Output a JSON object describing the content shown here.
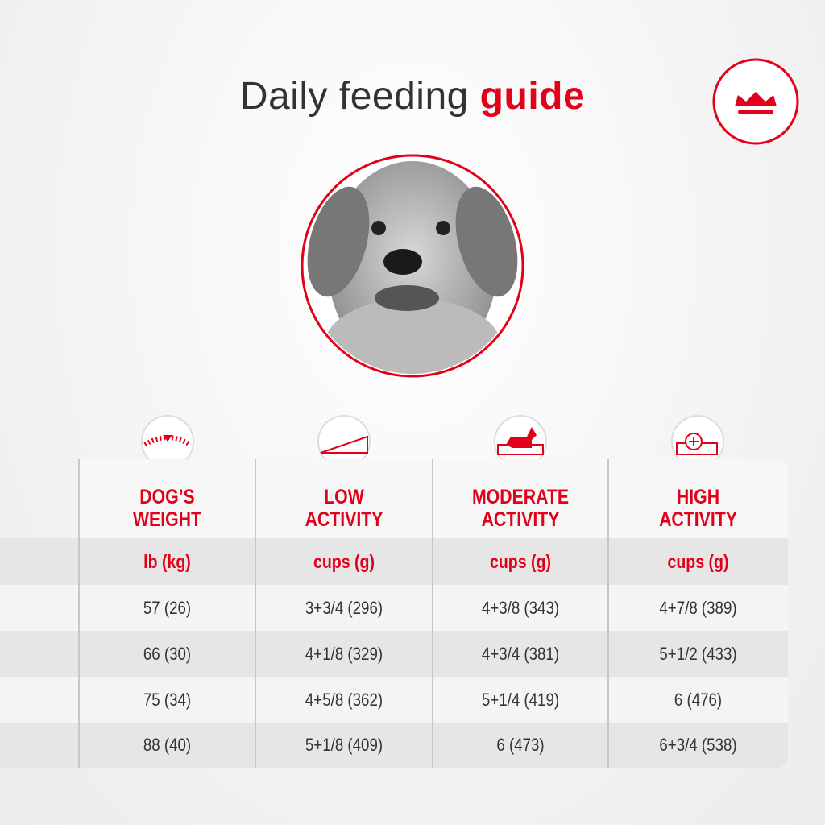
{
  "title": {
    "plain": "Daily feeding",
    "accent": "guide"
  },
  "table": {
    "columns": [
      {
        "header": [
          "DOG’S",
          "WEIGHT"
        ],
        "unit": "lb (kg)"
      },
      {
        "header": [
          "LOW",
          "ACTIVITY"
        ],
        "unit": "cups (g)"
      },
      {
        "header": [
          "MODERATE",
          "ACTIVITY"
        ],
        "unit": "cups (g)"
      },
      {
        "header": [
          "HIGH",
          "ACTIVITY"
        ],
        "unit": "cups (g)"
      }
    ],
    "rows": [
      [
        "57 (26)",
        "3+3/4 (296)",
        "4+3/8 (343)",
        "4+7/8 (389)"
      ],
      [
        "66 (30)",
        "4+1/8 (329)",
        "4+3/4 (381)",
        "5+1/2 (433)"
      ],
      [
        "75 (34)",
        "4+5/8 (362)",
        "5+1/4 (419)",
        "6 (476)"
      ],
      [
        "88 (40)",
        "5+1/8 (409)",
        "6 (473)",
        "6+3/4 (538)"
      ]
    ]
  }
}
